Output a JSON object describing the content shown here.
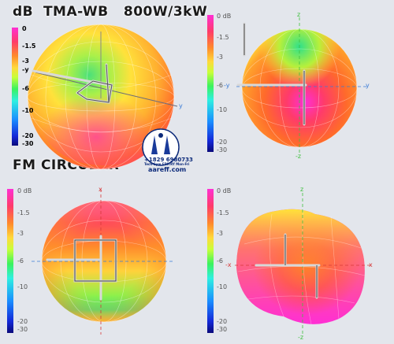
{
  "title": "dB  TMA-WB   800W/3kW",
  "subtitle": "FM CIRCULAR",
  "scale_ticks": [
    "0 dB",
    "-1.5",
    "-3",
    "-6",
    "-10",
    "-20",
    "-30"
  ],
  "scale_ticks_first": [
    "0",
    "-1.5",
    "-3",
    "-6",
    "-10",
    "-20",
    "-30"
  ],
  "axes": {
    "y": "y",
    "neg_y": "-y",
    "z": "z",
    "neg_z": "-z",
    "x": "x",
    "neg_x": "-x",
    "tl_y_small": "-y"
  },
  "logo": {
    "phone": "+1829 6980733",
    "line2": "Tech-Sym EDITRY Mon-Fri",
    "url": "aareff.com"
  },
  "colors": {
    "magenta": "#ff2fd4",
    "red": "#ff3b3b",
    "orange": "#ff8a2b",
    "yellow": "#ffe23b",
    "green": "#3bf25e",
    "cyan": "#2ff0e0",
    "blue": "#1a3bff"
  }
}
